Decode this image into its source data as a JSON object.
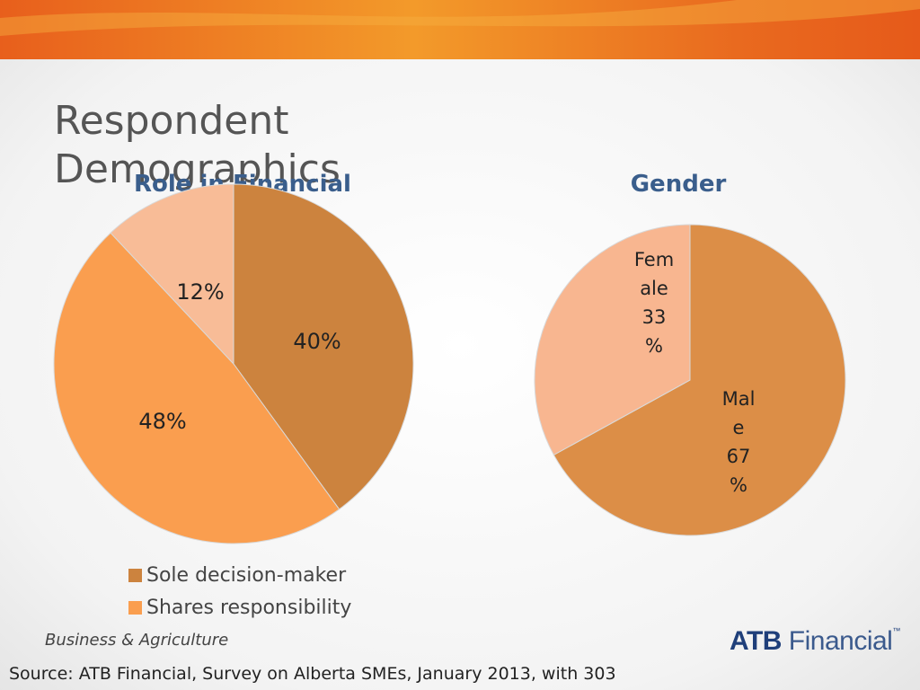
{
  "slide": {
    "title": "Respondent Demographics",
    "unit": "Business & Agriculture",
    "source": "Source:  ATB Financial, Survey on Alberta SMEs, January 2013, with 303",
    "logo": {
      "bold": "ATB",
      "rest": " Financial",
      "tm": "™"
    }
  },
  "colors": {
    "header_orange": "#e86a1e",
    "title_blue": "#3a5e8c"
  },
  "chart_data": [
    {
      "type": "pie",
      "title": "Role in Financial Decisions",
      "slices": [
        {
          "name": "Sole decision-maker",
          "value": 40,
          "label": "40%",
          "color": "#cc833e"
        },
        {
          "name": "Shares responsibility",
          "value": 48,
          "label": "48%",
          "color": "#fa9e4f"
        },
        {
          "name": "",
          "value": 12,
          "label": "12%",
          "color": "#f8bc97"
        }
      ],
      "legend": [
        "Sole decision-maker",
        "Shares responsibility"
      ],
      "legend_position": "bottom"
    },
    {
      "type": "pie",
      "title": "Gender",
      "slices": [
        {
          "name": "Male",
          "value": 67,
          "label_lines": [
            "Mal",
            "e",
            "67",
            "%"
          ],
          "color": "#dc8e47"
        },
        {
          "name": "Female",
          "value": 33,
          "label_lines": [
            "Fem",
            "ale",
            "33",
            "%"
          ],
          "color": "#f8b690"
        }
      ]
    }
  ]
}
